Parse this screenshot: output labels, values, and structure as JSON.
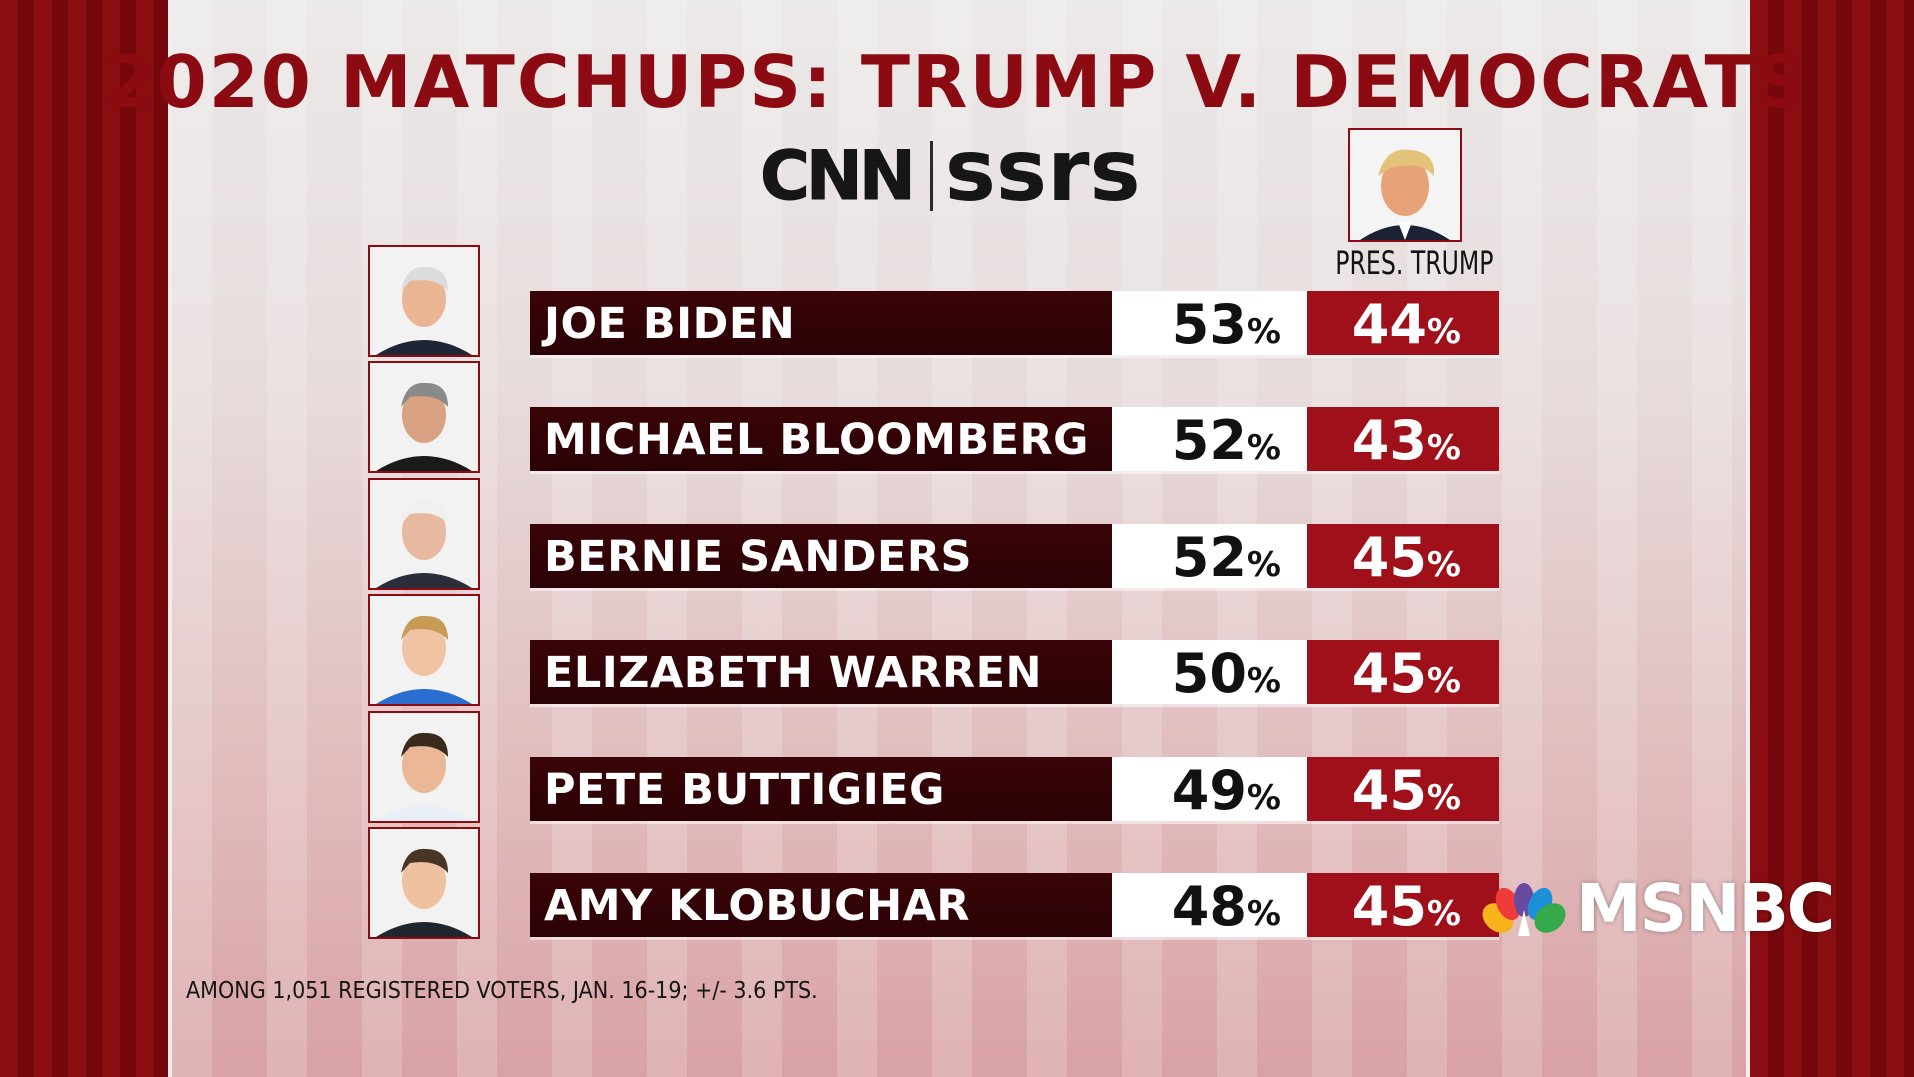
{
  "title": "2020 MATCHUPS: TRUMP V. DEMOCRATS",
  "logos": {
    "cnn": "CNN",
    "ssrs": "ssrs",
    "network": "MSNBC"
  },
  "opponent": {
    "label": "PRES. TRUMP"
  },
  "footnote": "AMONG 1,051 REGISTERED VOTERS, JAN. 16-19; +/- 3.6 PTS.",
  "colors": {
    "title": "#8c0b12",
    "name_bar": "#2a0205",
    "dem_bar": "#ffffff",
    "trump_bar": "#a0101a"
  },
  "icons": {
    "headshot": "person-photo-icon",
    "peacock": "peacock-icon"
  },
  "chart_data": {
    "type": "table",
    "title": "2020 MATCHUPS: TRUMP V. DEMOCRATS",
    "columns": [
      "",
      "",
      "PRES. TRUMP"
    ],
    "unit": "%",
    "rows": [
      {
        "name": "JOE BIDEN",
        "dem": 53,
        "trump": 44
      },
      {
        "name": "MICHAEL BLOOMBERG",
        "dem": 52,
        "trump": 43
      },
      {
        "name": "BERNIE SANDERS",
        "dem": 52,
        "trump": 45
      },
      {
        "name": "ELIZABETH WARREN",
        "dem": 50,
        "trump": 45
      },
      {
        "name": "PETE BUTTIGIEG",
        "dem": 49,
        "trump": 45
      },
      {
        "name": "AMY KLOBUCHAR",
        "dem": 48,
        "trump": 45
      }
    ]
  }
}
